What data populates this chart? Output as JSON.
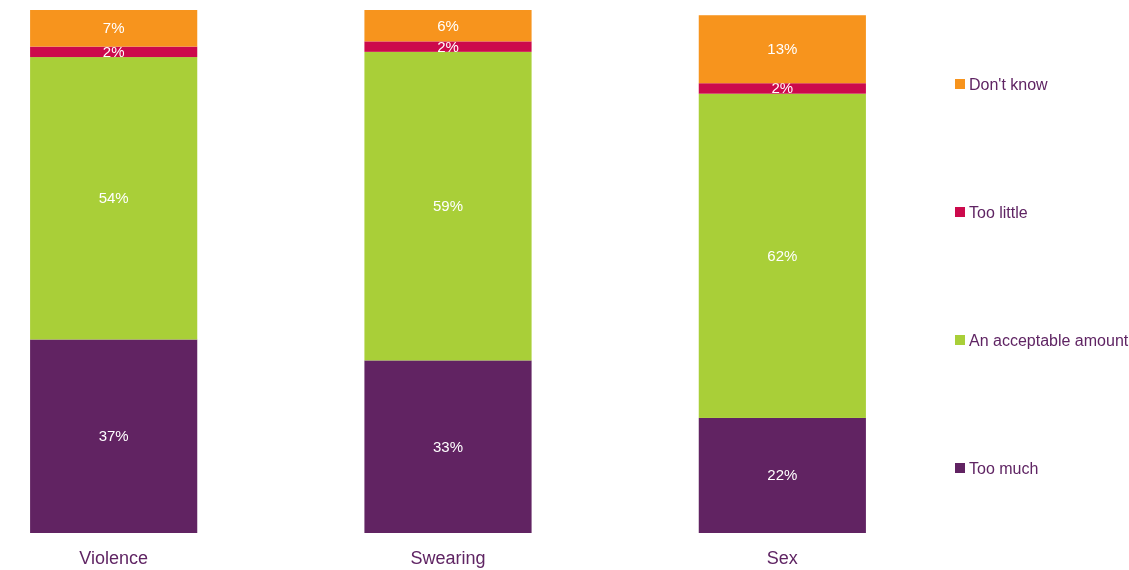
{
  "chart_data": {
    "type": "bar",
    "stacked": true,
    "categories": [
      "Violence",
      "Swearing",
      "Sex"
    ],
    "series": [
      {
        "name": "Too much",
        "color": "#612362",
        "values": [
          37,
          33,
          22
        ],
        "value_labels": [
          "37%",
          "33%",
          "22%"
        ]
      },
      {
        "name": "An acceptable amount",
        "color": "#a9cf38",
        "values": [
          54,
          59,
          62
        ],
        "value_labels": [
          "54%",
          "59%",
          "62%"
        ]
      },
      {
        "name": "Too little",
        "color": "#cc0a4c",
        "values": [
          2,
          2,
          2
        ],
        "value_labels": [
          "2%",
          "2%",
          "2%"
        ]
      },
      {
        "name": "Don't know",
        "color": "#f7941d",
        "values": [
          7,
          6,
          13
        ],
        "value_labels": [
          "7%",
          "6%",
          "13%"
        ]
      }
    ],
    "legend": "right"
  }
}
